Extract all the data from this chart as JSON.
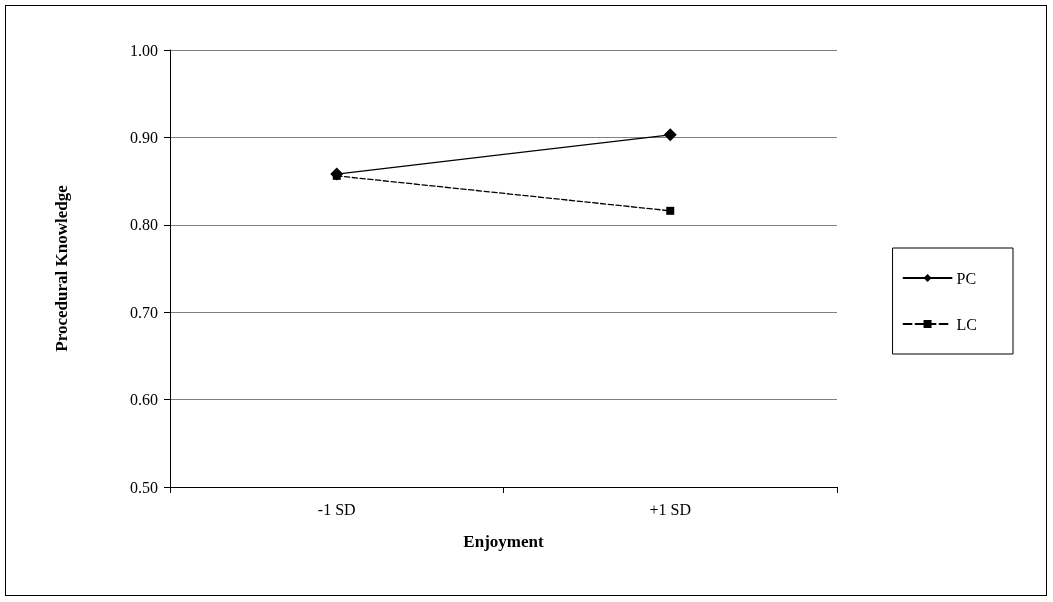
{
  "chart_data": {
    "type": "line",
    "xlabel": "Enjoyment",
    "ylabel": "Procedural Knowledge",
    "categories": [
      "-1 SD",
      "+1 SD"
    ],
    "series": [
      {
        "name": "PC",
        "color": "#000000",
        "values": [
          0.858,
          0.903
        ],
        "marker": "diamond",
        "line_style": "solid"
      },
      {
        "name": "LC",
        "color": "#000000",
        "values": [
          0.856,
          0.816
        ],
        "marker": "square",
        "line_style": "dashed"
      }
    ],
    "ylim": [
      0.5,
      1.0
    ],
    "yticks": [
      {
        "value": 0.5,
        "label": "0.50"
      },
      {
        "value": 0.6,
        "label": "0.60"
      },
      {
        "value": 0.7,
        "label": "0.70"
      },
      {
        "value": 0.8,
        "label": "0.80"
      },
      {
        "value": 0.9,
        "label": "0.90"
      },
      {
        "value": 1.0,
        "label": "1.00"
      }
    ],
    "grid": "y",
    "legend": "right"
  }
}
